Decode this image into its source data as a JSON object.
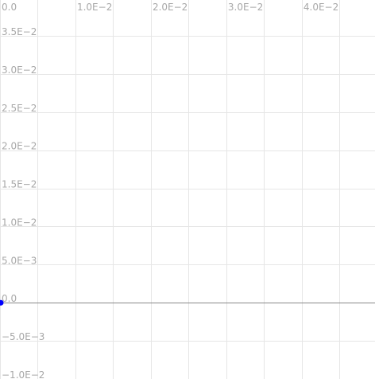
{
  "chart_data": {
    "type": "scatter",
    "x_ticks": [
      {
        "value": 0,
        "label": "0.0"
      },
      {
        "value": 0.01,
        "label": "1.0E−2"
      },
      {
        "value": 0.02,
        "label": "2.0E−2"
      },
      {
        "value": 0.03,
        "label": "3.0E−2"
      },
      {
        "value": 0.04,
        "label": "4.0E−2"
      }
    ],
    "y_ticks": [
      {
        "value": 0.035,
        "label": "3.5E−2"
      },
      {
        "value": 0.03,
        "label": "3.0E−2"
      },
      {
        "value": 0.025,
        "label": "2.5E−2"
      },
      {
        "value": 0.02,
        "label": "2.0E−2"
      },
      {
        "value": 0.015,
        "label": "1.5E−2"
      },
      {
        "value": 0.01,
        "label": "1.0E−2"
      },
      {
        "value": 0.005,
        "label": "5.0E−3"
      },
      {
        "value": 0,
        "label": "0.0"
      },
      {
        "value": -0.005,
        "label": "−5.0E−3"
      },
      {
        "value": -0.01,
        "label": "−1.0E−2"
      }
    ],
    "xlim": [
      0,
      0.0497
    ],
    "ylim": [
      -0.01,
      0.0397
    ],
    "grid": true,
    "minor_grid": true,
    "points": [
      {
        "x": 0,
        "y": 0
      }
    ],
    "point_color": "#0000ff",
    "zero_line_color": "#888888",
    "grid_color": "#e6e6e6"
  }
}
